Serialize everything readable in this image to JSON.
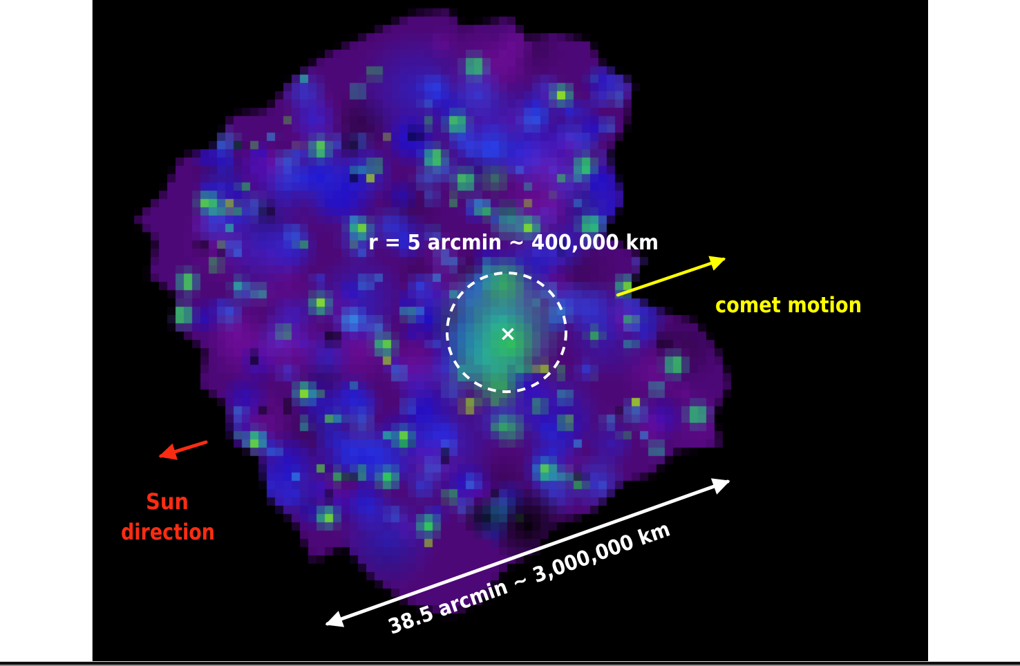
{
  "page": {
    "background_color": "#ffffff",
    "window_edge_color": "#0e0e0e"
  },
  "figure": {
    "description": "false-color X-ray image of comet coma",
    "background_color": "#000000",
    "border_color": "#c9c9c9",
    "palette": {
      "purple_deep": "#2a0440",
      "purple": "#4d0877",
      "magenta": "#7c0fa8",
      "blue_deep": "#1a10d8",
      "blue": "#1f2ce8",
      "blue_bright": "#2950f8",
      "blue_light": "#2f7df0",
      "cyan": "#2facf0",
      "teal": "#23c2a2",
      "green": "#30cd4e",
      "green_bright": "#55dc30",
      "yellow_green": "#a8dc1c"
    },
    "annotations": {
      "radius_label": {
        "text": "r = 5 arcmin ~ 400,000 km",
        "color": "#ffffff"
      },
      "nucleus_circle": {
        "color": "#ffffff"
      },
      "center_marker": {
        "glyph": "×",
        "color": "#ffffff"
      },
      "comet_motion": {
        "label": "comet motion",
        "color": "#feff00"
      },
      "sun_direction": {
        "lines": [
          "Sun",
          "direction"
        ],
        "color": "#fb2c12"
      },
      "scale_bar": {
        "text": "38.5 arcmin ~ 3,000,000 km",
        "color": "#ffffff"
      }
    }
  }
}
